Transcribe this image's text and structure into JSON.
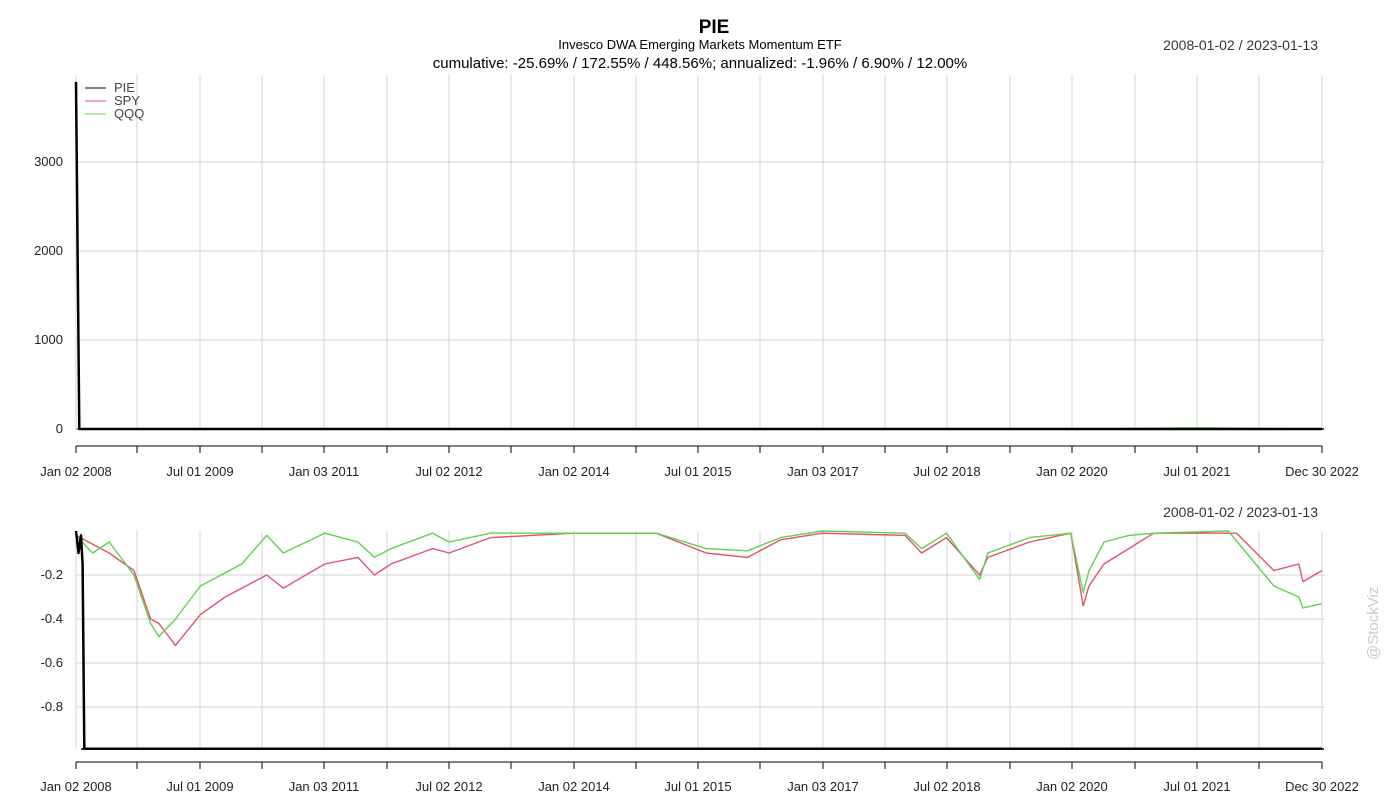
{
  "header": {
    "title": "PIE",
    "subtitle": "Invesco DWA Emerging Markets Momentum ETF",
    "stats": "cumulative: -25.69% / 172.55% / 448.56%; annualized: -1.96% / 6.90% / 12.00%",
    "date_range": "2008-01-02 / 2023-01-13",
    "watermark": "@StockViz"
  },
  "colors": {
    "PIE": "#000000",
    "SPY": "#df536b",
    "QQQ": "#61d04f",
    "grid": "#d3d3d3"
  },
  "chart_data": [
    {
      "type": "line",
      "x_tick_labels": [
        "Jan 02 2008",
        "Jul 01 2009",
        "Jan 03 2011",
        "Jul 02 2012",
        "Jan 02 2014",
        "Jul 01 2015",
        "Jan 03 2017",
        "Jul 02 2018",
        "Jan 02 2020",
        "Jul 01 2021",
        "Dec 30 2022"
      ],
      "y_ticks": [
        0,
        1000,
        2000,
        3000
      ],
      "ylim": [
        0,
        3800
      ],
      "legend": [
        "PIE",
        "SPY",
        "QQQ"
      ],
      "legend_position": "top-left",
      "series": [
        {
          "name": "PIE",
          "x": [
            2008.0,
            2008.04,
            2008.1,
            2023.03
          ],
          "y": [
            3900,
            0,
            0,
            0
          ]
        },
        {
          "name": "SPY",
          "x": [
            2008.0,
            2023.03
          ],
          "y": [
            0,
            0
          ]
        },
        {
          "name": "QQQ",
          "x": [
            2008.0,
            2020.4,
            2020.6,
            2021.0,
            2021.5,
            2022.0,
            2022.5,
            2023.03
          ],
          "y": [
            0,
            0,
            5,
            10,
            12,
            10,
            5,
            3
          ]
        }
      ]
    },
    {
      "type": "line",
      "x_tick_labels": [
        "Jan 02 2008",
        "Jul 01 2009",
        "Jan 03 2011",
        "Jul 02 2012",
        "Jan 02 2014",
        "Jul 01 2015",
        "Jan 03 2017",
        "Jul 02 2018",
        "Jan 02 2020",
        "Jul 01 2021",
        "Dec 30 2022"
      ],
      "y_ticks": [
        -0.2,
        -0.4,
        -0.6,
        -0.8
      ],
      "ylim": [
        -0.99,
        0
      ],
      "series": [
        {
          "name": "PIE",
          "x": [
            2008.0,
            2008.03,
            2008.06,
            2008.08,
            2008.1,
            2008.12,
            2023.03
          ],
          "y": [
            0,
            -0.1,
            -0.02,
            -0.15,
            -0.99,
            -0.99,
            -0.99
          ]
        },
        {
          "name": "SPY",
          "x": [
            2008.0,
            2008.2,
            2008.4,
            2008.7,
            2008.9,
            2009.0,
            2009.2,
            2009.5,
            2009.8,
            2010.3,
            2010.5,
            2011.0,
            2011.4,
            2011.6,
            2011.8,
            2012.3,
            2012.5,
            2013.0,
            2014.0,
            2015.0,
            2015.6,
            2016.1,
            2016.5,
            2017.0,
            2018.0,
            2018.2,
            2018.5,
            2018.9,
            2019.0,
            2019.5,
            2020.0,
            2020.15,
            2020.22,
            2020.4,
            2020.7,
            2021.0,
            2022.0,
            2022.45,
            2022.75,
            2022.8,
            2023.03
          ],
          "y": [
            -0.02,
            -0.06,
            -0.1,
            -0.18,
            -0.4,
            -0.42,
            -0.52,
            -0.38,
            -0.3,
            -0.2,
            -0.26,
            -0.15,
            -0.12,
            -0.2,
            -0.15,
            -0.08,
            -0.1,
            -0.03,
            -0.01,
            -0.01,
            -0.1,
            -0.12,
            -0.04,
            -0.01,
            -0.02,
            -0.1,
            -0.03,
            -0.2,
            -0.12,
            -0.05,
            -0.01,
            -0.34,
            -0.25,
            -0.15,
            -0.08,
            -0.01,
            -0.01,
            -0.18,
            -0.15,
            -0.23,
            -0.18
          ]
        },
        {
          "name": "QQQ",
          "x": [
            2008.0,
            2008.2,
            2008.4,
            2008.7,
            2008.9,
            2009.0,
            2009.2,
            2009.5,
            2010.0,
            2010.3,
            2010.5,
            2011.0,
            2011.4,
            2011.6,
            2011.8,
            2012.3,
            2012.5,
            2013.0,
            2014.0,
            2015.0,
            2015.6,
            2016.1,
            2016.5,
            2017.0,
            2018.0,
            2018.2,
            2018.5,
            2018.9,
            2019.0,
            2019.5,
            2020.0,
            2020.15,
            2020.22,
            2020.4,
            2020.7,
            2021.0,
            2021.9,
            2022.45,
            2022.75,
            2022.8,
            2023.03
          ],
          "y": [
            -0.02,
            -0.1,
            -0.05,
            -0.2,
            -0.42,
            -0.48,
            -0.4,
            -0.25,
            -0.15,
            -0.02,
            -0.1,
            -0.01,
            -0.05,
            -0.12,
            -0.08,
            -0.01,
            -0.05,
            -0.01,
            -0.01,
            -0.01,
            -0.08,
            -0.09,
            -0.03,
            0.0,
            -0.01,
            -0.08,
            -0.01,
            -0.22,
            -0.1,
            -0.03,
            -0.01,
            -0.28,
            -0.18,
            -0.05,
            -0.02,
            -0.01,
            0.0,
            -0.25,
            -0.3,
            -0.35,
            -0.33
          ]
        }
      ]
    }
  ]
}
